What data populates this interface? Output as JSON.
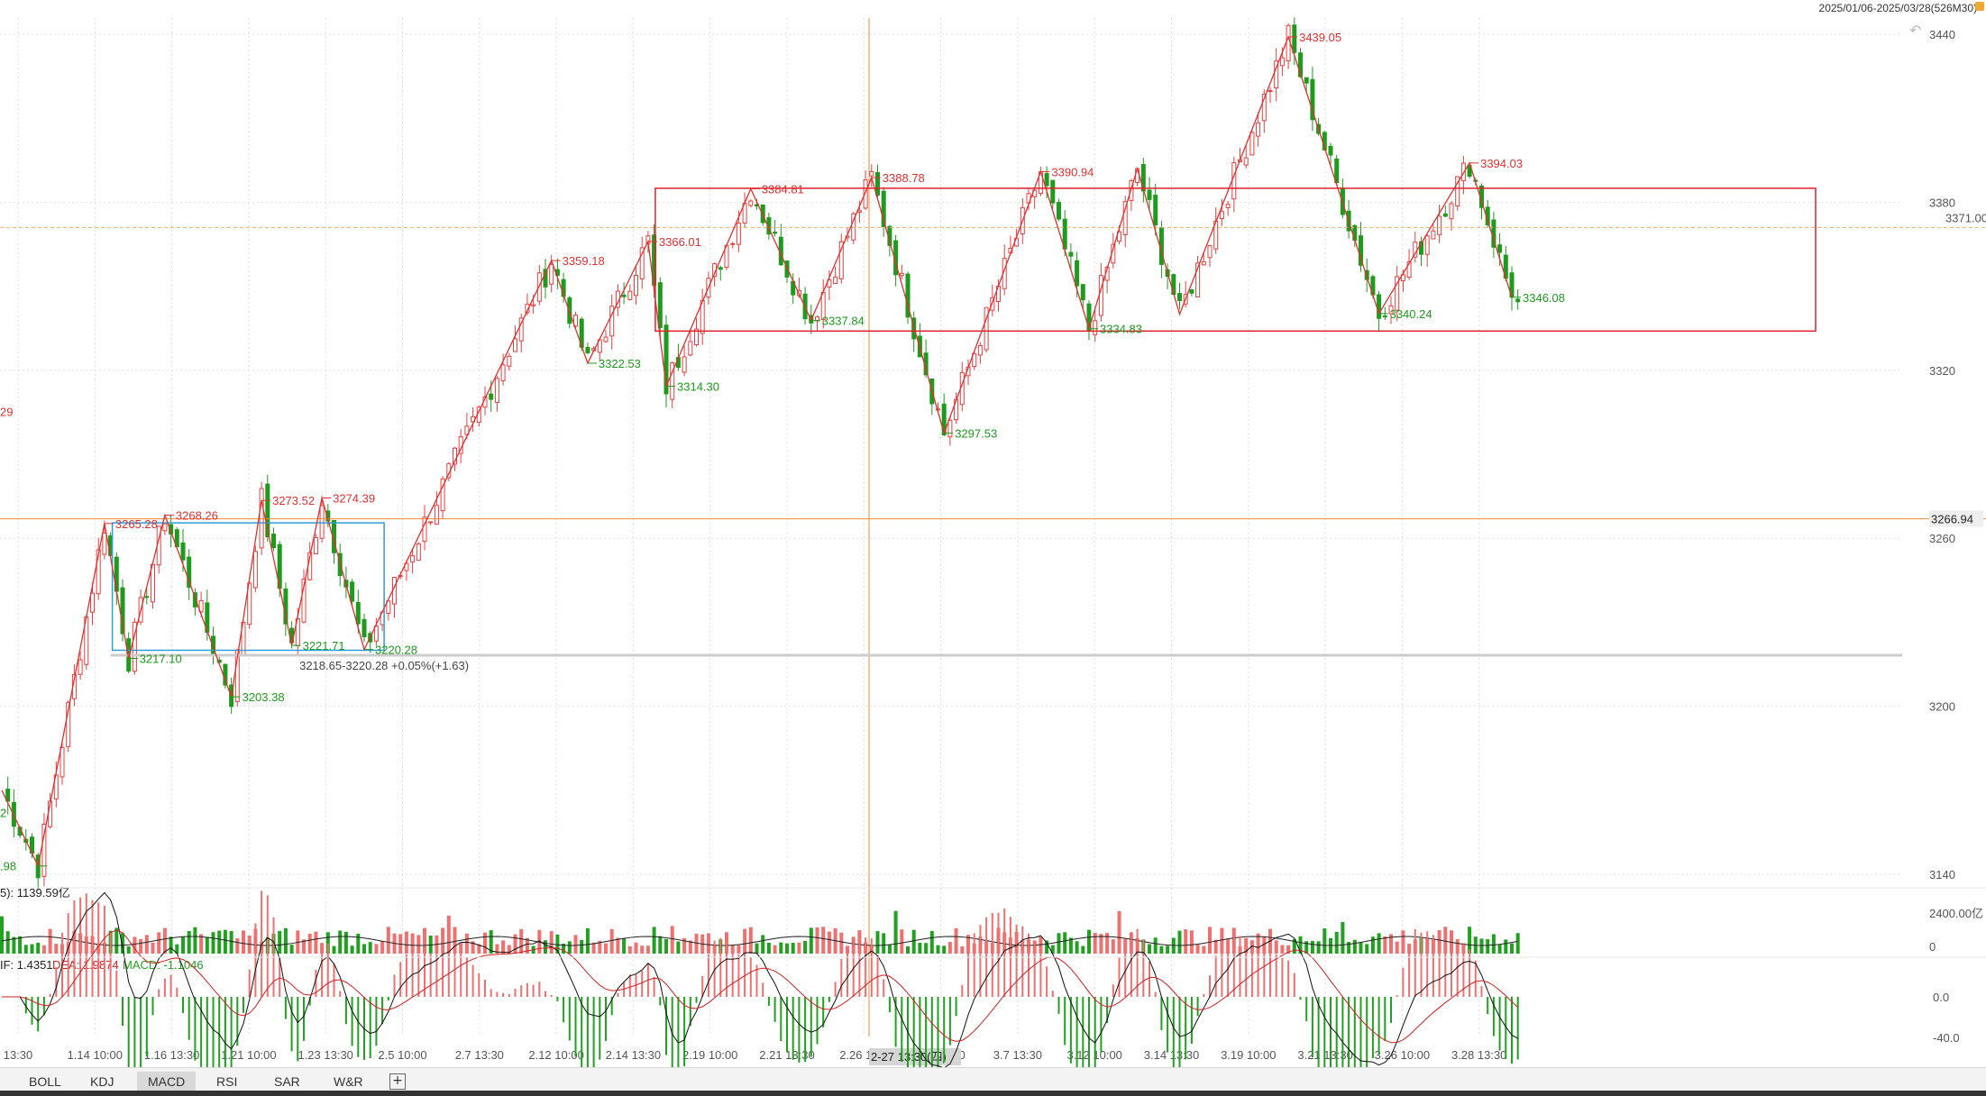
{
  "header": {
    "range_label": "2025/01/06-2025/03/28(526M30)"
  },
  "tabs": [
    {
      "label": "BOLL",
      "active": false
    },
    {
      "label": "KDJ",
      "active": false
    },
    {
      "label": "MACD",
      "active": true
    },
    {
      "label": "RSI",
      "active": false
    },
    {
      "label": "SAR",
      "active": false
    },
    {
      "label": "W&R",
      "active": false
    }
  ],
  "add_tab_icon": "plus-square-icon",
  "undo_icon": "undo-icon",
  "colors": {
    "up": "#e84040",
    "down": "#1e9a1e",
    "zigzag": "#e23030",
    "box_red": "#e0202a",
    "box_blue": "#2d9fd8",
    "crosshair": "#f08a30",
    "grid": "#e0e0e0",
    "dif_line": "#111111",
    "dea_line": "#d42020"
  },
  "chart_data": [
    {
      "type": "line",
      "name": "price",
      "y_ticks": [
        "3440",
        "3380",
        "3320",
        "3260",
        "3200",
        "3140"
      ],
      "ylim": [
        3140,
        3440
      ],
      "x_tick_labels": [
        "13:30",
        "1.14 10:00",
        "1.16 13:30",
        "1.21 10:00",
        "1.23 13:30",
        "2.5 10:00",
        "2.7 13:30",
        "2.12 10:00",
        "2.14 13:30",
        "2.19 10:00",
        "2.21 13:30",
        "2.26 10:0",
        "3.5 10:00",
        "3.7 13:30",
        "3.12 10:00",
        "3.14 13:30",
        "3.19 10:00",
        "3.21 13:30",
        "3.26 10:00",
        "3.28 13:30"
      ],
      "crosshair_x_label": "2-27 13:30(四)",
      "crosshair_y_label": "3266.94",
      "crosshair_y": 3266.94,
      "dashed_level_label": "3371.00",
      "dashed_level": 3371.0,
      "zigzag_pivots": [
        {
          "i": 0,
          "v": 3170,
          "label": ""
        },
        {
          "i": 6,
          "v": 3142.98,
          "label": ".98"
        },
        {
          "i": 17,
          "v": 3265.28,
          "label": "3265.28"
        },
        {
          "i": 21,
          "v": 3217.1,
          "label": "3217.10"
        },
        {
          "i": 27,
          "v": 3268.26,
          "label": "3268.26"
        },
        {
          "i": 38,
          "v": 3203.38,
          "label": "3203.38"
        },
        {
          "i": 43,
          "v": 3273.52,
          "label": "3273.52"
        },
        {
          "i": 48,
          "v": 3221.71,
          "label": "3221.71"
        },
        {
          "i": 53,
          "v": 3274.39,
          "label": "3274.39"
        },
        {
          "i": 60,
          "v": 3220.28,
          "label": "3220.28"
        },
        {
          "i": 91,
          "v": 3359.18,
          "label": "3359.18"
        },
        {
          "i": 97,
          "v": 3322.53,
          "label": "3322.53"
        },
        {
          "i": 107,
          "v": 3366.01,
          "label": "3366.01"
        },
        {
          "i": 110,
          "v": 3314.3,
          "label": "3314.30"
        },
        {
          "i": 124,
          "v": 3384.81,
          "label": "3384.81"
        },
        {
          "i": 134,
          "v": 3337.84,
          "label": "3337.84"
        },
        {
          "i": 144,
          "v": 3388.78,
          "label": "3388.78"
        },
        {
          "i": 156,
          "v": 3297.53,
          "label": "3297.53"
        },
        {
          "i": 172,
          "v": 3390.94,
          "label": "3390.94"
        },
        {
          "i": 180,
          "v": 3334.83,
          "label": "3334.83"
        },
        {
          "i": 188,
          "v": 3392.0,
          "label": ""
        },
        {
          "i": 195,
          "v": 3340.0,
          "label": ""
        },
        {
          "i": 213,
          "v": 3439.05,
          "label": "3439.05"
        },
        {
          "i": 228,
          "v": 3340.24,
          "label": "3340.24"
        },
        {
          "i": 243,
          "v": 3394.03,
          "label": "3394.03"
        },
        {
          "i": 250,
          "v": 3346.08,
          "label": "3346.08"
        }
      ],
      "partial_labels": [
        {
          "text": "29",
          "v": 3305.29
        },
        {
          "text": "2",
          "v": 3162.0
        }
      ],
      "range_box_red": {
        "i0": 107,
        "i1": 300,
        "v_top": 3385,
        "v_bottom": 3334
      },
      "range_box_blue": {
        "i0": 18,
        "i1": 63,
        "v_top": 3265.5,
        "v_bottom": 3220
      },
      "measure_label": "3218.65-3220.28  +0.05%(+1.63)",
      "measure_level": 3219.5,
      "n_bars": 252
    },
    {
      "type": "bar",
      "name": "volume",
      "header_label": "5): 1139.59亿",
      "y_ticks": [
        "2400.00亿",
        "0"
      ]
    },
    {
      "type": "line",
      "name": "macd",
      "header_label": "IF: 1.4351",
      "dea_label": "DEA: 1.9874",
      "macd_label": "MACD: -1.1046",
      "y_ticks": [
        "0.0",
        "-40.0"
      ],
      "dif": 1.4351,
      "dea": 1.9874,
      "macd": -1.1046
    }
  ]
}
